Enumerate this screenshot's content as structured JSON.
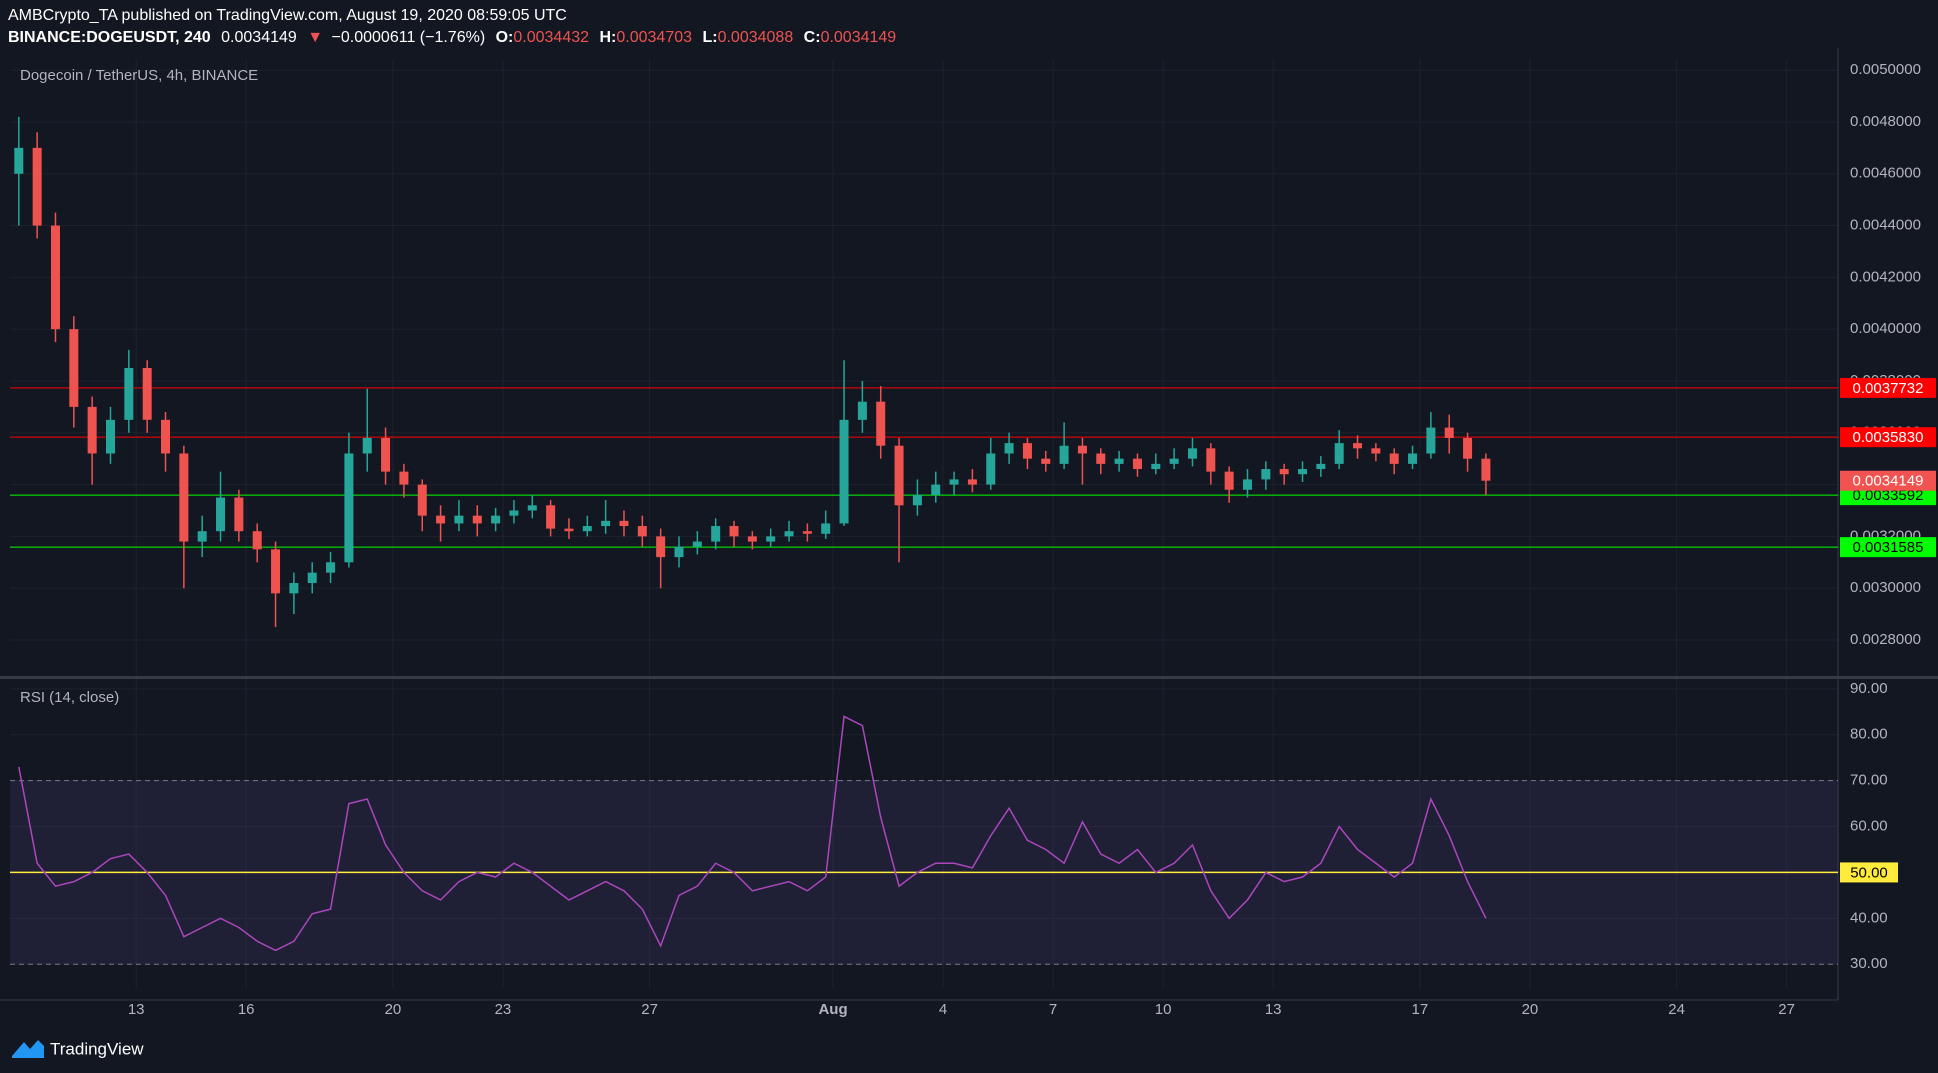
{
  "header": {
    "publisher": "AMBCrypto_TA published on TradingView.com, August 19, 2020 08:59:05 UTC",
    "symbol": "BINANCE:DOGEUSDT, 240",
    "last": "0.0034149",
    "arrow": "▼",
    "change": "−0.0000611 (−1.76%)",
    "ohlc": [
      {
        "label": "O:",
        "value": "0.0034432"
      },
      {
        "label": "H:",
        "value": "0.0034703"
      },
      {
        "label": "L:",
        "value": "0.0034088"
      },
      {
        "label": "C:",
        "value": "0.0034149"
      }
    ]
  },
  "chart_data": [
    {
      "type": "candlestick",
      "title": "Dogecoin / TetherUS, 4h, BINANCE",
      "up_color": "#26a69a",
      "down_color": "#ef5350",
      "grid": true,
      "x": [
        9.8,
        10.3,
        10.8,
        11.3,
        11.8,
        12.3,
        12.8,
        13.3,
        13.8,
        14.3,
        14.8,
        15.3,
        15.8,
        16.3,
        16.8,
        17.3,
        17.8,
        18.3,
        18.8,
        19.3,
        19.8,
        20.3,
        20.8,
        21.3,
        21.8,
        22.3,
        22.8,
        23.3,
        23.8,
        24.3,
        24.8,
        25.3,
        25.8,
        26.3,
        26.8,
        27.3,
        27.8,
        28.3,
        28.8,
        29.3,
        29.8,
        30.3,
        30.8,
        31.3,
        31.8,
        32.3,
        32.8,
        33.3,
        33.8,
        34.3,
        34.8,
        35.3,
        35.8,
        36.3,
        36.8,
        37.3,
        37.8,
        38.3,
        38.8,
        39.3,
        39.8,
        40.3,
        40.8,
        41.3,
        41.8,
        42.3,
        42.8,
        43.3,
        43.8,
        44.3,
        44.8,
        45.3,
        45.8,
        46.3,
        46.8,
        47.3,
        47.8,
        48.3,
        48.8,
        49.3,
        49.8
      ],
      "open": [
        0.0046,
        0.0047,
        0.0044,
        0.004,
        0.0037,
        0.00352,
        0.00365,
        0.00385,
        0.00365,
        0.00352,
        0.00318,
        0.00322,
        0.00335,
        0.00322,
        0.00315,
        0.00298,
        0.00302,
        0.00306,
        0.0031,
        0.00352,
        0.00358,
        0.00345,
        0.0034,
        0.00328,
        0.00325,
        0.00328,
        0.00325,
        0.00328,
        0.0033,
        0.00332,
        0.00323,
        0.00322,
        0.00324,
        0.00326,
        0.00324,
        0.0032,
        0.00312,
        0.00316,
        0.00318,
        0.00324,
        0.0032,
        0.00318,
        0.0032,
        0.00322,
        0.00321,
        0.00325,
        0.00365,
        0.00372,
        0.00355,
        0.00332,
        0.00336,
        0.0034,
        0.00342,
        0.0034,
        0.00352,
        0.00356,
        0.0035,
        0.00348,
        0.00355,
        0.00352,
        0.00348,
        0.0035,
        0.00346,
        0.00348,
        0.0035,
        0.00354,
        0.00345,
        0.00338,
        0.00342,
        0.00346,
        0.00344,
        0.00346,
        0.00348,
        0.00356,
        0.00354,
        0.00352,
        0.00348,
        0.00352,
        0.00362,
        0.00358,
        0.0035
      ],
      "high": [
        0.00482,
        0.00476,
        0.00445,
        0.00405,
        0.00374,
        0.0037,
        0.00392,
        0.00388,
        0.00368,
        0.00355,
        0.00328,
        0.00345,
        0.00338,
        0.00325,
        0.00318,
        0.00306,
        0.0031,
        0.00314,
        0.0036,
        0.00377,
        0.00362,
        0.00348,
        0.00342,
        0.00332,
        0.00334,
        0.00332,
        0.00331,
        0.00334,
        0.00336,
        0.00334,
        0.00327,
        0.00328,
        0.00334,
        0.0033,
        0.00328,
        0.00323,
        0.0032,
        0.00322,
        0.00327,
        0.00326,
        0.00322,
        0.00323,
        0.00326,
        0.00325,
        0.0033,
        0.00388,
        0.0038,
        0.00378,
        0.00358,
        0.00342,
        0.00345,
        0.00345,
        0.00346,
        0.00358,
        0.0036,
        0.00358,
        0.00353,
        0.00364,
        0.00358,
        0.00354,
        0.00353,
        0.00352,
        0.00352,
        0.00354,
        0.00358,
        0.00356,
        0.00347,
        0.00346,
        0.00349,
        0.00348,
        0.00349,
        0.00351,
        0.00361,
        0.00359,
        0.00356,
        0.00354,
        0.00355,
        0.00368,
        0.00367,
        0.0036,
        0.00352
      ],
      "low": [
        0.0044,
        0.00435,
        0.00395,
        0.00362,
        0.0034,
        0.00348,
        0.0036,
        0.0036,
        0.00345,
        0.003,
        0.00312,
        0.00318,
        0.00318,
        0.0031,
        0.00285,
        0.0029,
        0.00298,
        0.00302,
        0.00308,
        0.00345,
        0.0034,
        0.00335,
        0.00322,
        0.00318,
        0.00322,
        0.0032,
        0.00322,
        0.00325,
        0.00327,
        0.0032,
        0.00319,
        0.0032,
        0.00321,
        0.0032,
        0.00316,
        0.003,
        0.00308,
        0.00313,
        0.00315,
        0.00316,
        0.00315,
        0.00316,
        0.00318,
        0.00318,
        0.00319,
        0.00324,
        0.0036,
        0.0035,
        0.0031,
        0.00328,
        0.00333,
        0.00336,
        0.00337,
        0.00338,
        0.00348,
        0.00346,
        0.00345,
        0.00346,
        0.0034,
        0.00344,
        0.00345,
        0.00343,
        0.00344,
        0.00346,
        0.00347,
        0.0034,
        0.00333,
        0.00335,
        0.00338,
        0.0034,
        0.00341,
        0.00343,
        0.00346,
        0.0035,
        0.00349,
        0.00344,
        0.00346,
        0.0035,
        0.00352,
        0.00345,
        0.00336
      ],
      "close": [
        0.0047,
        0.0044,
        0.004,
        0.0037,
        0.00352,
        0.00365,
        0.00385,
        0.00365,
        0.00352,
        0.00318,
        0.00322,
        0.00335,
        0.00322,
        0.00315,
        0.00298,
        0.00302,
        0.00306,
        0.0031,
        0.00352,
        0.00358,
        0.00345,
        0.0034,
        0.00328,
        0.00325,
        0.00328,
        0.00325,
        0.00328,
        0.0033,
        0.00332,
        0.00323,
        0.00322,
        0.00324,
        0.00326,
        0.00324,
        0.0032,
        0.00312,
        0.00316,
        0.00318,
        0.00324,
        0.0032,
        0.00318,
        0.0032,
        0.00322,
        0.00321,
        0.00325,
        0.00365,
        0.00372,
        0.00355,
        0.00332,
        0.00336,
        0.0034,
        0.00342,
        0.0034,
        0.00352,
        0.00356,
        0.0035,
        0.00348,
        0.00355,
        0.00352,
        0.00348,
        0.0035,
        0.00346,
        0.00348,
        0.0035,
        0.00354,
        0.00345,
        0.00338,
        0.00342,
        0.00346,
        0.00344,
        0.00346,
        0.00348,
        0.00356,
        0.00354,
        0.00352,
        0.00348,
        0.00352,
        0.00362,
        0.00358,
        0.0035,
        0.0034149
      ],
      "xlim": [
        9.56,
        59.4
      ],
      "xticks": [
        13,
        16,
        20,
        23,
        27,
        {
          "value": 32,
          "label": "Aug"
        },
        {
          "value": 35,
          "label": "4"
        },
        {
          "value": 38,
          "label": "7"
        },
        {
          "value": 41,
          "label": "10"
        },
        {
          "value": 44,
          "label": "13"
        },
        {
          "value": 48,
          "label": "17"
        },
        {
          "value": 51,
          "label": "20"
        },
        {
          "value": 55,
          "label": "24"
        },
        {
          "value": 58,
          "label": "27"
        }
      ],
      "ylim": [
        0.002661,
        0.005043
      ],
      "yticks": [
        {
          "value": 0.0028,
          "label": "0.0028000"
        },
        {
          "value": 0.003,
          "label": "0.0030000"
        },
        {
          "value": 0.0032,
          "label": "0.0032000"
        },
        {
          "value": 0.0034,
          "label": "0.0034000"
        },
        {
          "value": 0.0036,
          "label": "0.0036000"
        },
        {
          "value": 0.0038,
          "label": "0.0038000"
        },
        {
          "value": 0.004,
          "label": "0.0040000"
        },
        {
          "value": 0.0042,
          "label": "0.0042000"
        },
        {
          "value": 0.0044,
          "label": "0.0044000"
        },
        {
          "value": 0.0046,
          "label": "0.0046000"
        },
        {
          "value": 0.0048,
          "label": "0.0048000"
        },
        {
          "value": 0.005,
          "label": "0.0050000"
        }
      ],
      "levels": [
        {
          "value": 0.0037732,
          "label": "0.0037732",
          "color": "#ff0000"
        },
        {
          "value": 0.003583,
          "label": "0.0035830",
          "color": "#ff0000"
        },
        {
          "value": 0.0033592,
          "label": "0.0033592",
          "color": "#00ff00"
        },
        {
          "value": 0.0031585,
          "label": "0.0031585",
          "color": "#00ff00"
        }
      ],
      "last_price": {
        "value": 0.0034149,
        "label": "0.0034149",
        "color": "#f05350"
      }
    },
    {
      "type": "line",
      "title": "RSI (14, close)",
      "color": "#ab47bc",
      "values": [
        73,
        52,
        47,
        48,
        50,
        53,
        54,
        50,
        45,
        36,
        38,
        40,
        38,
        35,
        33,
        35,
        41,
        42,
        65,
        66,
        56,
        50,
        46,
        44,
        48,
        50,
        49,
        52,
        50,
        47,
        44,
        46,
        48,
        46,
        42,
        34,
        45,
        47,
        52,
        50,
        46,
        47,
        48,
        46,
        49,
        84,
        82,
        62,
        47,
        50,
        52,
        52,
        51,
        58,
        64,
        57,
        55,
        52,
        61,
        54,
        52,
        55,
        50,
        52,
        56,
        46,
        40,
        44,
        50,
        48,
        49,
        52,
        60,
        55,
        52,
        49,
        52,
        66,
        58,
        48,
        40
      ],
      "ylim": [
        24.6,
        92.15
      ],
      "yticks": [
        {
          "value": 30,
          "label": "30.00"
        },
        {
          "value": 40,
          "label": "40.00"
        },
        {
          "value": 50,
          "label": "50.00"
        },
        {
          "value": 60,
          "label": "60.00"
        },
        {
          "value": 70,
          "label": "70.00"
        },
        {
          "value": 80,
          "label": "80.00"
        },
        {
          "value": 90,
          "label": "90.00"
        }
      ],
      "band": [
        30,
        70
      ],
      "midline": {
        "value": 50,
        "label": "50.00",
        "color": "#ffeb3b"
      }
    }
  ],
  "footer": {
    "brand": "TradingView"
  }
}
